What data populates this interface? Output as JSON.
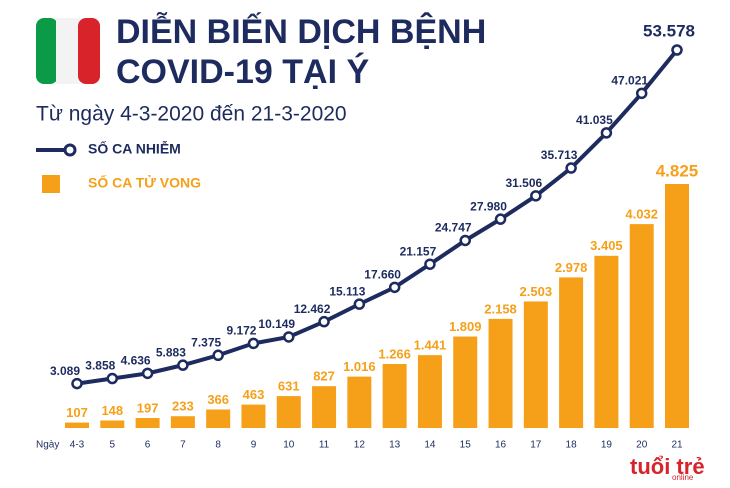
{
  "chart_data": {
    "type": "line-bar",
    "title": [
      "DIỄN BIẾN DỊCH BỆNH",
      "COVID-19 TẠI Ý"
    ],
    "subtitle": "Từ ngày 4-3-2020 đến 21-3-2020",
    "x_label": "Ngày",
    "categories": [
      "4-3",
      "5",
      "6",
      "7",
      "8",
      "9",
      "10",
      "11",
      "12",
      "13",
      "14",
      "15",
      "16",
      "17",
      "18",
      "19",
      "20",
      "21"
    ],
    "series": [
      {
        "name": "SỐ CA NHIỄM",
        "color": "#1d2b5e",
        "kind": "line",
        "values": [
          3089,
          3858,
          4636,
          5883,
          7375,
          9172,
          10149,
          12462,
          15113,
          17660,
          21157,
          24747,
          27980,
          31506,
          35713,
          41035,
          47021,
          53578
        ],
        "value_labels": [
          "3.089",
          "3.858",
          "4.636",
          "5.883",
          "7.375",
          "9.172",
          "10.149",
          "12.462",
          "15.113",
          "17.660",
          "21.157",
          "24.747",
          "27.980",
          "31.506",
          "35.713",
          "41.035",
          "47.021",
          "53.578"
        ]
      },
      {
        "name": "SỐ CA TỬ VONG",
        "color": "#f6a01a",
        "kind": "bar",
        "values": [
          107,
          148,
          197,
          233,
          366,
          463,
          631,
          827,
          1016,
          1266,
          1441,
          1809,
          2158,
          2503,
          2978,
          3405,
          4032,
          4825
        ],
        "value_labels": [
          "107",
          "148",
          "197",
          "233",
          "366",
          "463",
          "631",
          "827",
          "1.016",
          "1.266",
          "1.441",
          "1.809",
          "2.158",
          "2.503",
          "2.978",
          "3.405",
          "4.032",
          "4.825"
        ]
      }
    ]
  },
  "logo": {
    "text": "tuổi trẻ",
    "sub": "online"
  }
}
